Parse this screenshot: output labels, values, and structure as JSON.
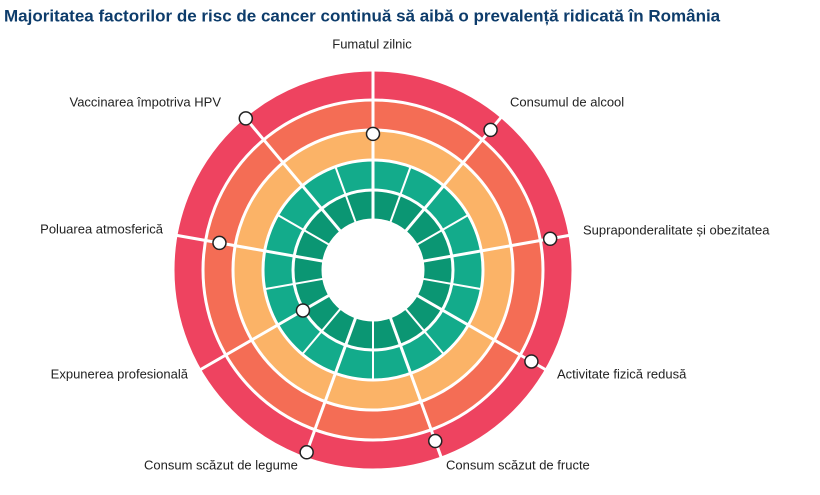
{
  "chart_data": {
    "type": "radial-bands",
    "title": "Majoritatea factorilor de risc de cancer continuă să aibă o prevalență ridicată în România",
    "categories": [
      "Fumatul zilnic",
      "Consumul de alcool",
      "Supraponderalitate și obezitatea",
      "Activitate fizică redusă",
      "Consum scăzut de fructe",
      "Consum scăzut de legume",
      "Expunerea profesională",
      "Poluarea atmosferică",
      "Vaccinarea împotriva HPV"
    ],
    "values": [
      2.87,
      4.43,
      4.33,
      4.43,
      4.4,
      4.8,
      1.03,
      3.53,
      4.93
    ],
    "rlim": [
      0,
      5
    ],
    "band_colors": [
      "#0b9673",
      "#13ab8b",
      "#fbb367",
      "#f46d55",
      "#ee4360"
    ]
  }
}
